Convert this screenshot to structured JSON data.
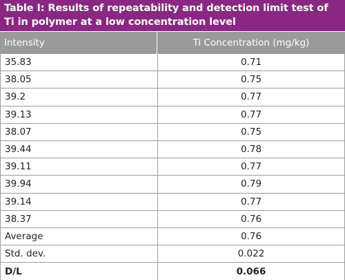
{
  "table": {
    "title": "Table I: Results of repeatability and detection limit test of Ti in polymer at a low concentration level",
    "columns": [
      "Intensity",
      "Ti Concentration (mg/kg)"
    ],
    "rows": [
      {
        "intensity": "35.83",
        "concentration": "0.71"
      },
      {
        "intensity": "38.05",
        "concentration": "0.75"
      },
      {
        "intensity": "39.2",
        "concentration": "0.77"
      },
      {
        "intensity": "39.13",
        "concentration": "0.77"
      },
      {
        "intensity": "38.07",
        "concentration": "0.75"
      },
      {
        "intensity": "39.44",
        "concentration": "0.78"
      },
      {
        "intensity": "39.11",
        "concentration": "0.77"
      },
      {
        "intensity": "39.94",
        "concentration": "0.79"
      },
      {
        "intensity": "39.14",
        "concentration": "0.77"
      },
      {
        "intensity": "38.37",
        "concentration": "0.76"
      },
      {
        "intensity": "Average",
        "concentration": "0.76"
      },
      {
        "intensity": "Std. dev.",
        "concentration": "0.022"
      },
      {
        "intensity": "D/L",
        "concentration": "0.066"
      }
    ],
    "title_color": "#8a2782",
    "header_color": "#9a9a9a"
  }
}
